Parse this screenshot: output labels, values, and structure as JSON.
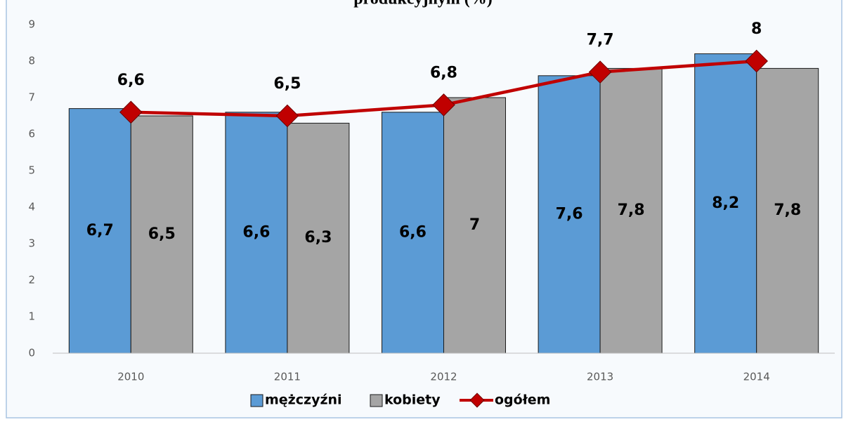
{
  "chart_data": {
    "type": "bar_line",
    "title": "produkcyjnym (%)",
    "categories": [
      "2010",
      "2011",
      "2012",
      "2013",
      "2014"
    ],
    "series": [
      {
        "name": "mężczyźni",
        "type": "bar",
        "color": "#5b9bd5",
        "values": [
          6.7,
          6.6,
          6.6,
          7.6,
          8.2
        ],
        "value_labels": [
          "6,7",
          "6,6",
          "6,6",
          "7,6",
          "8,2"
        ]
      },
      {
        "name": "kobiety",
        "type": "bar",
        "color": "#a5a5a5",
        "values": [
          6.5,
          6.3,
          7,
          7.8,
          7.8
        ],
        "value_labels": [
          "6,5",
          "6,3",
          "7",
          "7,8",
          "7,8"
        ]
      },
      {
        "name": "ogółem",
        "type": "line",
        "color": "#c00000",
        "values": [
          6.6,
          6.5,
          6.8,
          7.7,
          8
        ],
        "value_labels": [
          "6,6",
          "6,5",
          "6,8",
          "7,7",
          "8"
        ]
      }
    ],
    "ylim": [
      0,
      9
    ],
    "yticks": [
      0,
      1,
      2,
      3,
      4,
      5,
      6,
      7,
      8,
      9
    ],
    "grid": false,
    "legend": "bottom"
  }
}
